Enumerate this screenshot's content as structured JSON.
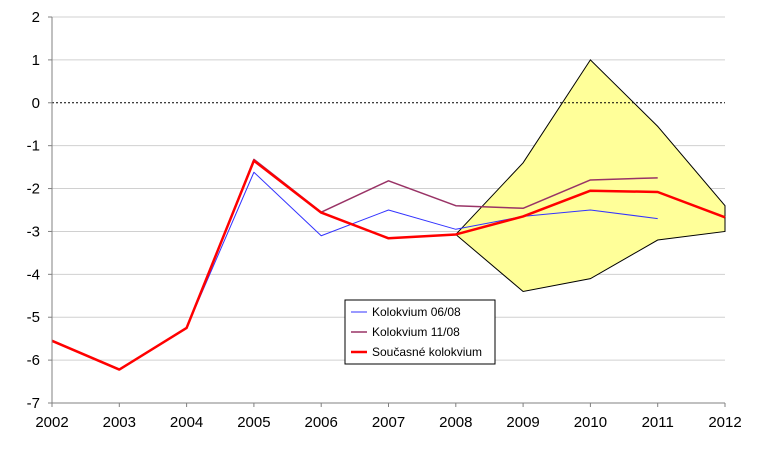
{
  "chart_data": {
    "type": "line",
    "title": "",
    "xlabel": "",
    "ylabel": "",
    "x": [
      2002,
      2003,
      2004,
      2005,
      2006,
      2007,
      2008,
      2009,
      2010,
      2011,
      2012
    ],
    "xlim": [
      2002,
      2012
    ],
    "ylim": [
      -7,
      2
    ],
    "yticks": [
      2,
      1,
      0,
      -1,
      -2,
      -3,
      -4,
      -5,
      -6,
      -7
    ],
    "grid": true,
    "zero_line": "dotted",
    "legend_position": "bottom-center",
    "series": [
      {
        "name": "Kolokvium 06/08",
        "color": "#3333ff",
        "values": [
          -5.55,
          -6.22,
          -5.25,
          -1.62,
          -3.1,
          -2.5,
          -2.95,
          -2.65,
          -2.5,
          -2.7,
          null
        ]
      },
      {
        "name": "Kolokvium 11/08",
        "color": "#993366",
        "values": [
          -5.55,
          -6.22,
          -5.25,
          -1.32,
          -2.55,
          -1.82,
          -2.4,
          -2.46,
          -1.8,
          -1.75,
          null
        ]
      },
      {
        "name": "Současné kolokvium",
        "color": "#ff0000",
        "values": [
          -5.55,
          -6.22,
          -5.25,
          -1.35,
          -2.56,
          -3.16,
          -3.07,
          -2.65,
          -2.05,
          -2.08,
          -2.67
        ]
      }
    ],
    "band": {
      "fill": "#ffff99",
      "x": [
        2008,
        2009,
        2010,
        2011,
        2012
      ],
      "upper": [
        -3.07,
        -1.4,
        1.0,
        -0.55,
        -2.4
      ],
      "lower": [
        -3.07,
        -4.4,
        -4.1,
        -3.2,
        -3.0
      ]
    }
  }
}
